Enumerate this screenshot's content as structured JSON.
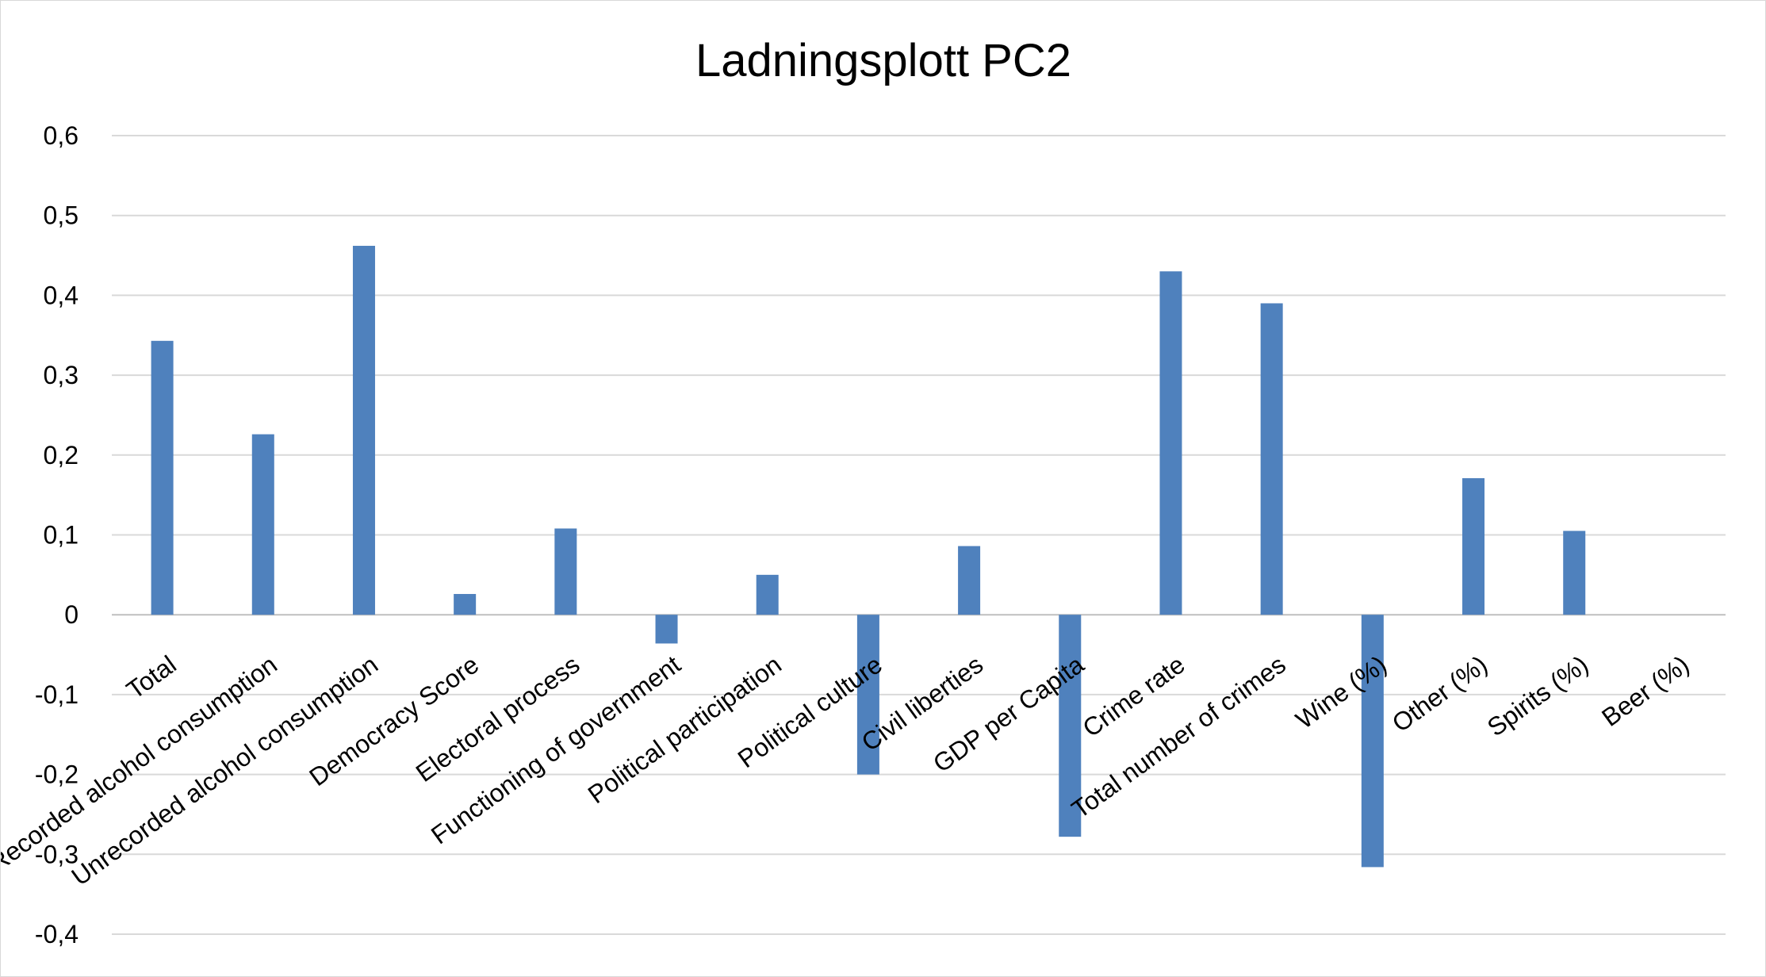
{
  "chart_data": {
    "type": "bar",
    "title": "Ladningsplott PC2",
    "xlabel": "",
    "ylabel": "",
    "ylim": [
      -0.4,
      0.6
    ],
    "yticks": [
      0.6,
      0.5,
      0.4,
      0.3,
      0.2,
      0.1,
      0,
      -0.1,
      -0.2,
      -0.3,
      -0.4
    ],
    "ytick_labels": [
      "0,6",
      "0,5",
      "0,4",
      "0,3",
      "0,2",
      "0,1",
      "0",
      "-0,1",
      "-0,2",
      "-0,3",
      "-0,4"
    ],
    "grid": true,
    "legend": "none",
    "bar_color": "#4f81bd",
    "categories": [
      "Total",
      "Recorded alcohol consumption",
      "Unrecorded alcohol consumption",
      "Democracy Score",
      "Electoral process",
      "Functioning of government",
      "Political participation",
      "Political culture",
      "Civil liberties",
      "GDP per Capita",
      "Crime rate",
      "Total number of crimes",
      "Wine (%)",
      "Other (%)",
      "Spirits (%)",
      "Beer (%)"
    ],
    "values": [
      0.343,
      0.226,
      0.462,
      0.026,
      0.108,
      -0.036,
      0.05,
      -0.2,
      0.086,
      -0.278,
      0.43,
      0.39,
      -0.316,
      0.171,
      0.105,
      0.0
    ]
  }
}
